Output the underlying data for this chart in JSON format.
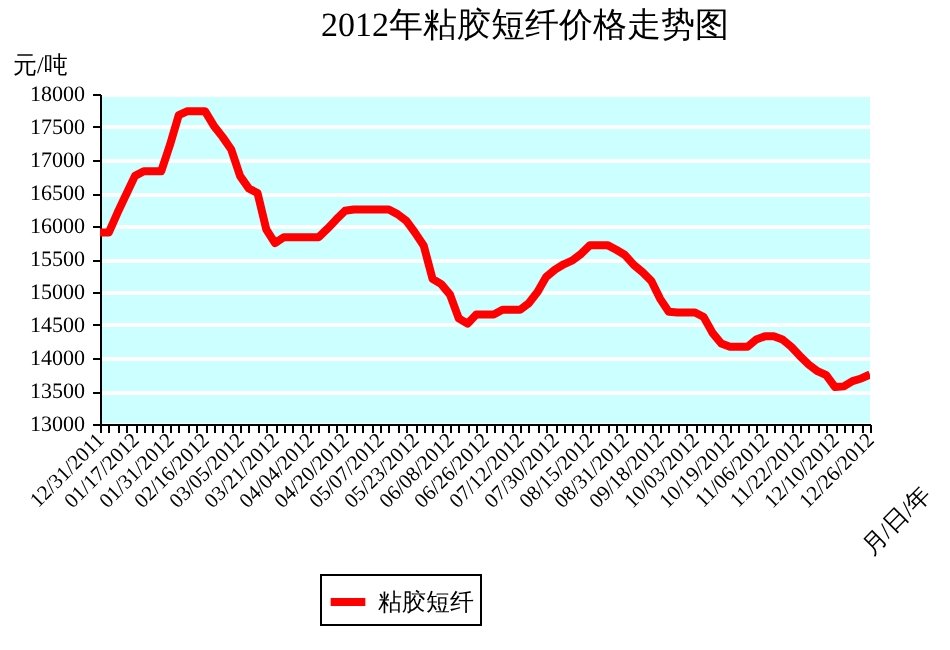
{
  "chart_data": {
    "type": "line",
    "title": "2012年粘胶短纤价格走势图",
    "ylabel": "元/吨",
    "xlabel": "月/日/年",
    "categories": [
      "12/31/2011",
      null,
      null,
      null,
      "01/17/2012",
      null,
      null,
      null,
      "01/31/2012",
      null,
      null,
      null,
      "02/16/2012",
      null,
      null,
      null,
      "03/05/2012",
      null,
      null,
      null,
      "03/21/2012",
      null,
      null,
      null,
      "04/04/2012",
      null,
      null,
      null,
      "04/20/2012",
      null,
      null,
      null,
      "05/07/2012",
      null,
      null,
      null,
      "05/23/2012",
      null,
      null,
      null,
      "06/08/2012",
      null,
      null,
      null,
      "06/26/2012",
      null,
      null,
      null,
      "07/12/2012",
      null,
      null,
      null,
      "07/30/2012",
      null,
      null,
      null,
      "08/15/2012",
      null,
      null,
      null,
      "08/31/2012",
      null,
      null,
      null,
      "09/18/2012",
      null,
      null,
      null,
      "10/03/2012",
      null,
      null,
      null,
      "10/19/2012",
      null,
      null,
      null,
      "11/06/2012",
      null,
      null,
      null,
      "11/22/2012",
      null,
      null,
      null,
      "12/10/2012",
      null,
      null,
      null,
      "12/26/2012"
    ],
    "series": [
      {
        "name": "粘胶短纤",
        "color": "#ff0000",
        "values": [
          15900,
          15900,
          16200,
          16480,
          16760,
          16830,
          16830,
          16830,
          17230,
          17680,
          17740,
          17740,
          17740,
          17520,
          17350,
          17160,
          16760,
          16570,
          16500,
          15950,
          15740,
          15830,
          15830,
          15830,
          15830,
          15830,
          15960,
          16100,
          16230,
          16250,
          16250,
          16250,
          16250,
          16250,
          16180,
          16080,
          15900,
          15700,
          15200,
          15120,
          14960,
          14600,
          14520,
          14660,
          14660,
          14660,
          14730,
          14730,
          14730,
          14830,
          15000,
          15230,
          15340,
          15420,
          15480,
          15580,
          15710,
          15710,
          15710,
          15640,
          15560,
          15410,
          15300,
          15170,
          14900,
          14700,
          14690,
          14690,
          14690,
          14620,
          14380,
          14220,
          14170,
          14170,
          14170,
          14280,
          14330,
          14330,
          14280,
          14170,
          14030,
          13900,
          13800,
          13740,
          13560,
          13570,
          13650,
          13690,
          13750
        ]
      }
    ],
    "ylim": [
      13000,
      18000
    ],
    "yticks": [
      13000,
      13500,
      14000,
      14500,
      15000,
      15500,
      16000,
      16500,
      17000,
      17500,
      18000
    ],
    "grid": "y",
    "legend": "bottom",
    "marker": "none",
    "line_style": "solid"
  }
}
